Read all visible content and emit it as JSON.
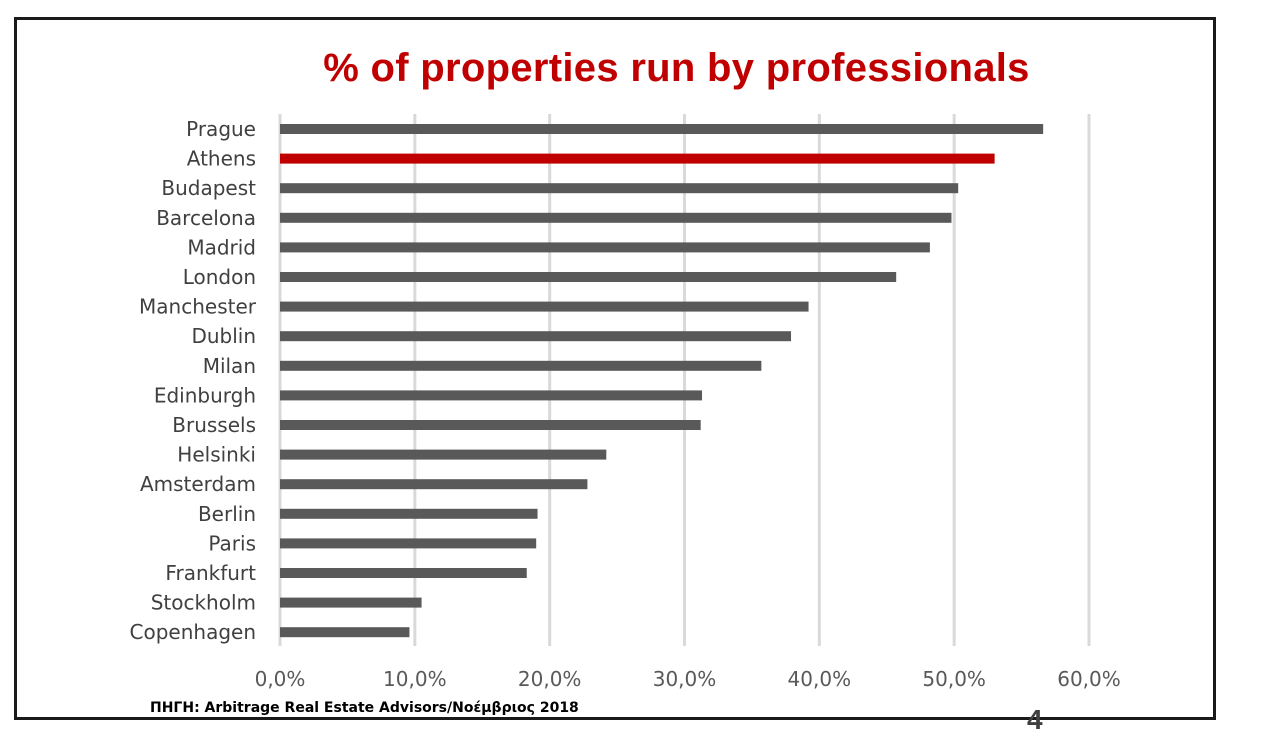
{
  "title": "% of properties run by professionals",
  "source": "ΠΗΓΗ: Arbitrage Real Estate Advisors/Νοέμβριος 2018",
  "page_number": "4",
  "colors": {
    "bar": "#595959",
    "highlight": "#c00000",
    "grid": "#d9d9d9",
    "title": "#c00000"
  },
  "chart_data": {
    "type": "bar",
    "orientation": "horizontal",
    "title": "% of properties run by professionals",
    "categories": [
      "Prague",
      "Athens",
      "Budapest",
      "Barcelona",
      "Madrid",
      "London",
      "Manchester",
      "Dublin",
      "Milan",
      "Edinburgh",
      "Brussels",
      "Helsinki",
      "Amsterdam",
      "Berlin",
      "Paris",
      "Frankfurt",
      "Stockholm",
      "Copenhagen"
    ],
    "values": [
      56.6,
      53.0,
      50.3,
      49.8,
      48.2,
      45.7,
      39.2,
      37.9,
      35.7,
      31.3,
      31.2,
      24.2,
      22.8,
      19.1,
      19.0,
      18.3,
      10.5,
      9.6
    ],
    "highlight": "Athens",
    "xlim": [
      0,
      60
    ],
    "xticks": [
      "0,0%",
      "10,0%",
      "20,0%",
      "30,0%",
      "40,0%",
      "50,0%",
      "60,0%"
    ],
    "grid": "vertical",
    "xlabel": "",
    "ylabel": ""
  }
}
